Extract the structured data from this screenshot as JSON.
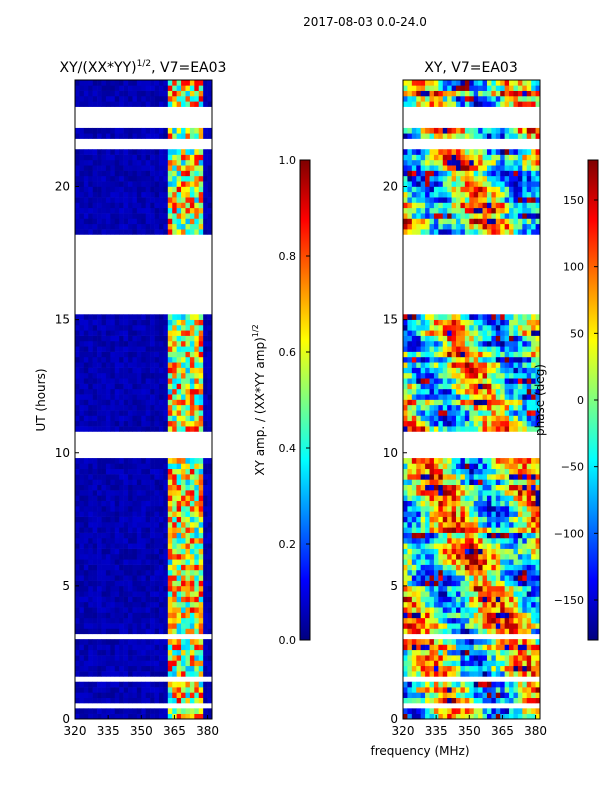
{
  "figure": {
    "suptitle": "2017-08-03 0.0-24.0",
    "shared_xlabel": "frequency (MHz)"
  },
  "colors": {
    "jet": [
      "#00007f",
      "#0000ff",
      "#007fff",
      "#00ffff",
      "#7fff7f",
      "#ffff00",
      "#ff7f00",
      "#ff0000",
      "#7f0000"
    ],
    "gap": "#ffffff",
    "axis": "#000000"
  },
  "chart_data": [
    {
      "type": "heatmap",
      "id": "left",
      "title_prefix": "XY/(XX*YY)",
      "title_sup": "1/2",
      "title_suffix": ", V7=EA03",
      "xlabel": "",
      "ylabel": "UT (hours)",
      "xlim": [
        320,
        382
      ],
      "ylim": [
        0,
        24
      ],
      "xticks": [
        320,
        335,
        350,
        365,
        380
      ],
      "yticks": [
        0,
        5,
        10,
        15,
        20
      ],
      "colorbar": {
        "label_main": "XY amp. / (XX*YY amp)",
        "label_sup": "1/2",
        "range": [
          0.0,
          1.0
        ],
        "ticks": [
          "0.0",
          "0.2",
          "0.4",
          "0.6",
          "0.8",
          "1.0"
        ],
        "tick_values": [
          0.0,
          0.2,
          0.4,
          0.6,
          0.8,
          1.0
        ]
      },
      "data_gaps_hours": [
        [
          22.3,
          22.9
        ],
        [
          21.4,
          21.8
        ],
        [
          17.6,
          18.1
        ],
        [
          15.3,
          17.5
        ],
        [
          9.9,
          10.7
        ],
        [
          3.0,
          3.1
        ],
        [
          1.5,
          1.6
        ],
        [
          0.4,
          0.5
        ]
      ],
      "value_profile": "near 0 for 320-362 MHz; bright structure 0.3-0.9 in 362-378 MHz"
    },
    {
      "type": "heatmap",
      "id": "right",
      "title": "XY, V7=EA03",
      "xlabel": "",
      "ylabel": "",
      "xlim": [
        320,
        382
      ],
      "ylim": [
        0,
        24
      ],
      "xticks": [
        320,
        335,
        350,
        365,
        380
      ],
      "yticks": [
        0,
        5,
        10,
        15,
        20
      ],
      "colorbar": {
        "label": "phase (deg)",
        "range": [
          -180,
          180
        ],
        "ticks": [
          "−150",
          "−100",
          "−50",
          "0",
          "50",
          "100",
          "150"
        ],
        "tick_values": [
          -150,
          -100,
          -50,
          0,
          50,
          100,
          150
        ]
      },
      "data_gaps_hours": [
        [
          22.3,
          22.9
        ],
        [
          21.4,
          21.8
        ],
        [
          17.6,
          18.1
        ],
        [
          15.3,
          17.5
        ],
        [
          9.9,
          10.7
        ],
        [
          3.0,
          3.1
        ],
        [
          1.5,
          1.6
        ],
        [
          0.4,
          0.5
        ]
      ],
      "value_profile": "phase wraps across full -180..180 range, noisy with striping"
    }
  ]
}
